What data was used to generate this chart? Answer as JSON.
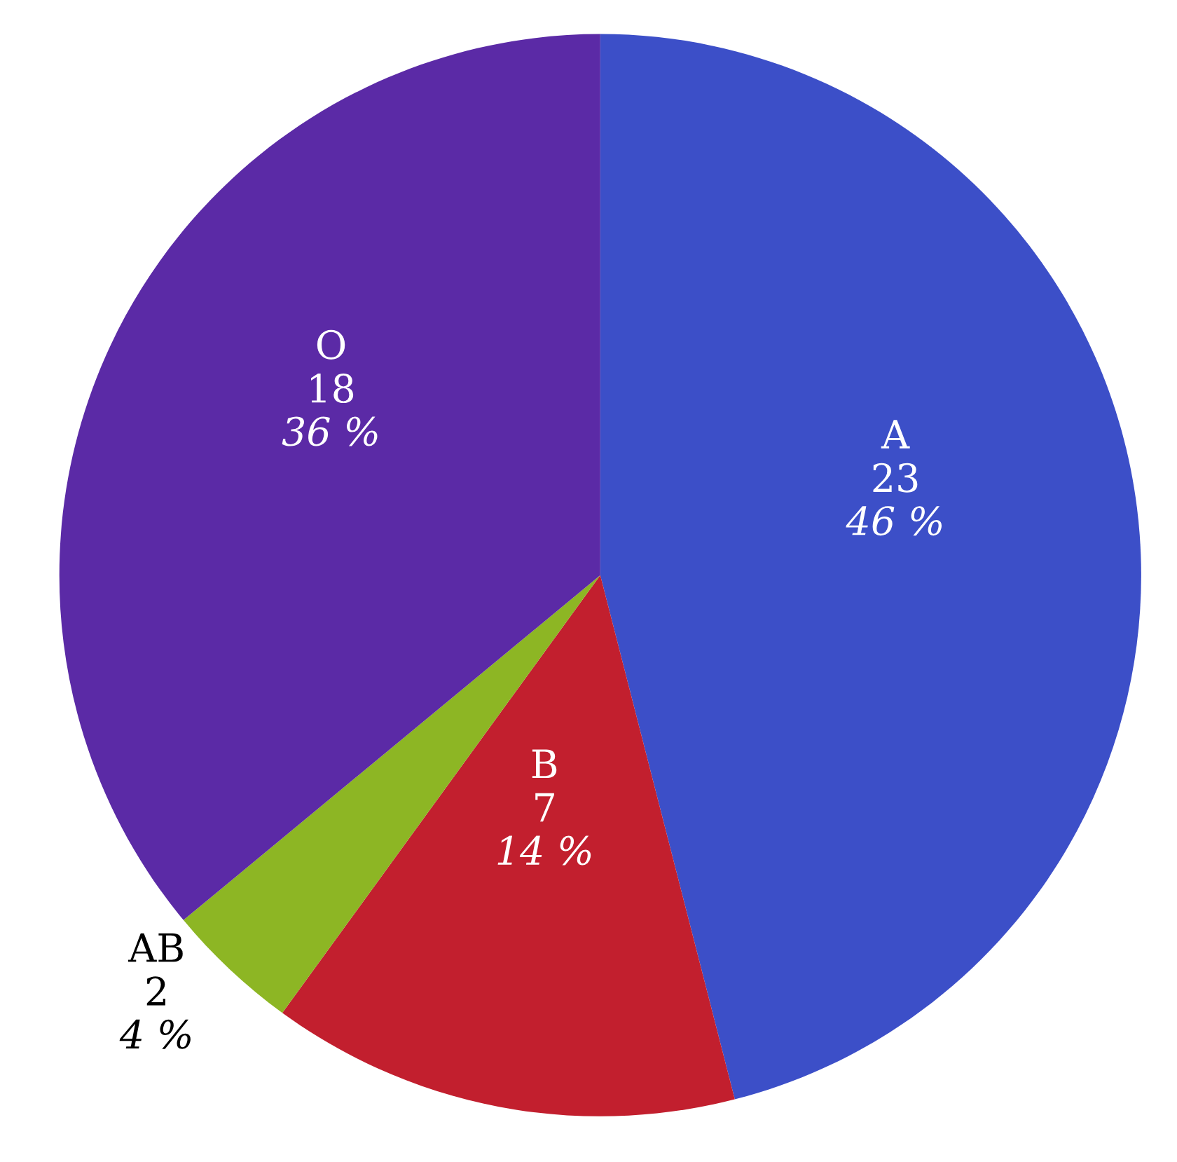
{
  "chart_data": {
    "type": "pie",
    "categories": [
      "A",
      "B",
      "AB",
      "O"
    ],
    "values": [
      46,
      14,
      4,
      36
    ],
    "colors": [
      "#3c4fc8",
      "#c21f2e",
      "#8db624",
      "#5b2aa6"
    ],
    "value_labels": [
      "23\n46 %",
      "7\n14 %",
      "2\n4 %",
      "18\n36 %"
    ],
    "legend": false
  }
}
